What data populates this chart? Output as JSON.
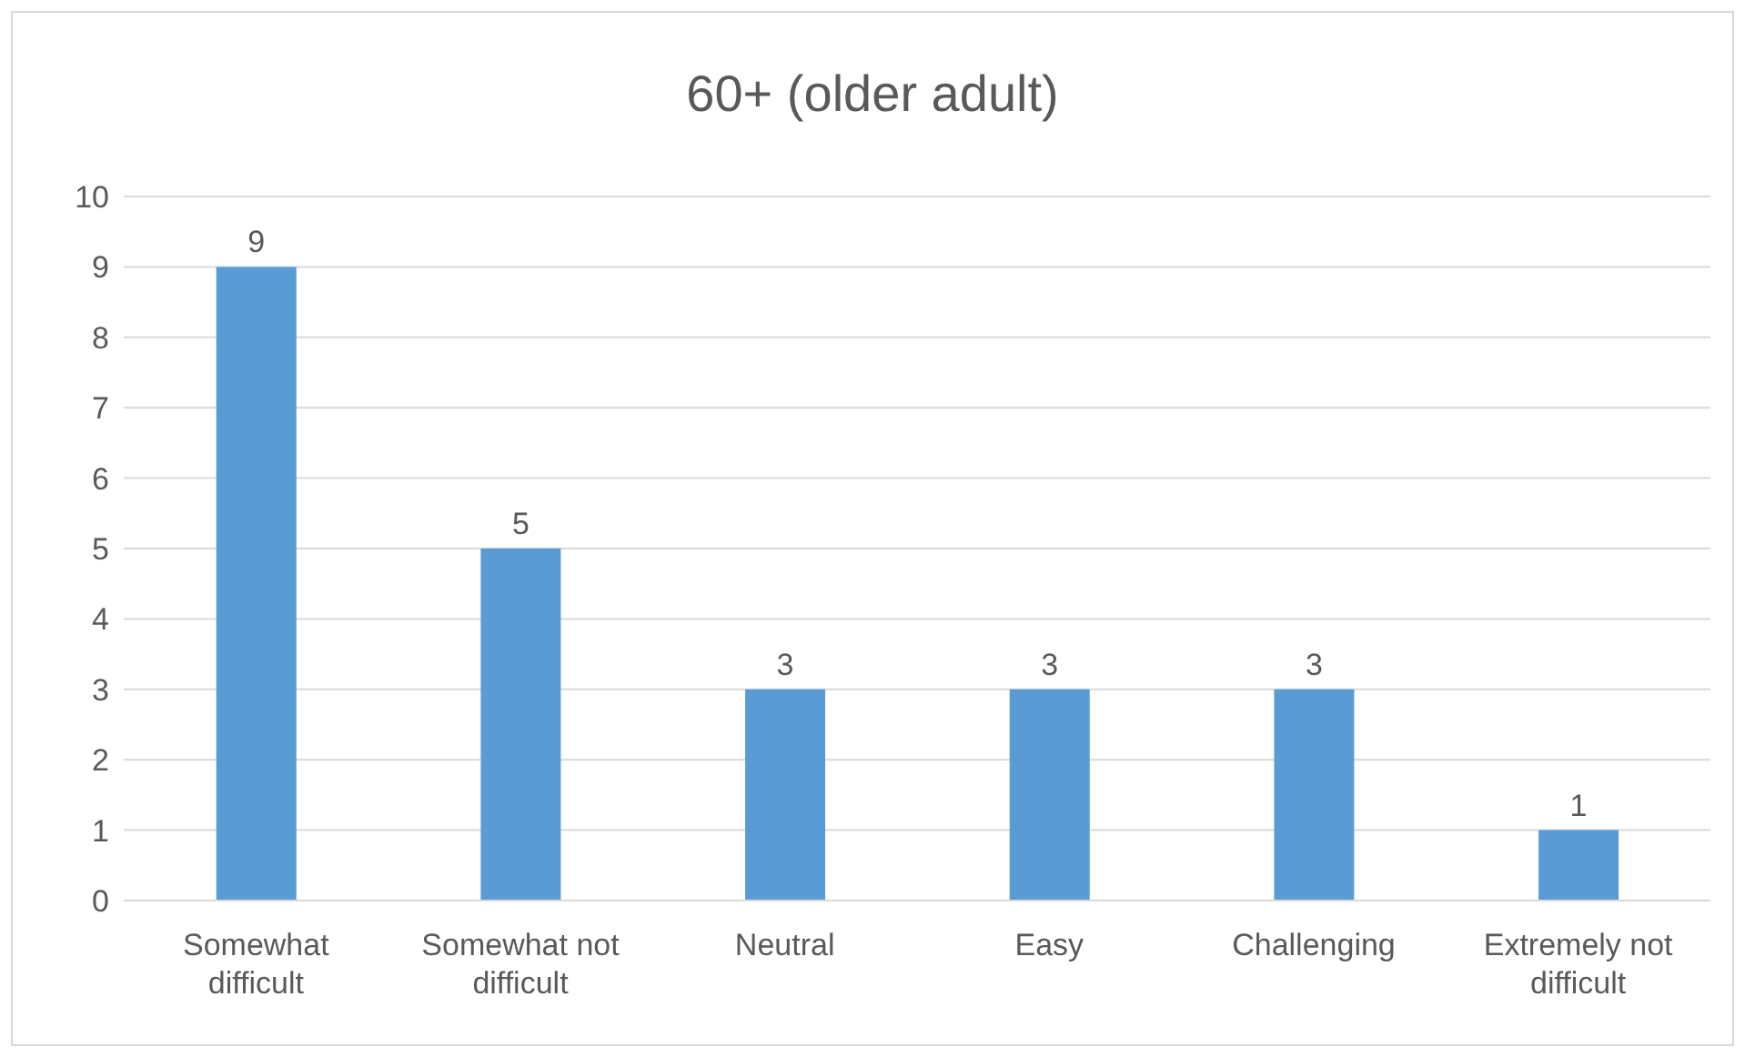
{
  "chart_data": {
    "type": "bar",
    "title": "60+ (older adult)",
    "categories": [
      "Somewhat difficult",
      "Somewhat not difficult",
      "Neutral",
      "Easy",
      "Challenging",
      "Extremely not difficult"
    ],
    "values": [
      9,
      5,
      3,
      3,
      3,
      1
    ],
    "color": "#5b9bd5",
    "ylim": [
      0,
      10
    ],
    "yticks": [
      0,
      1,
      2,
      3,
      4,
      5,
      6,
      7,
      8,
      9,
      10
    ],
    "grid": "y",
    "data_labels": true
  }
}
